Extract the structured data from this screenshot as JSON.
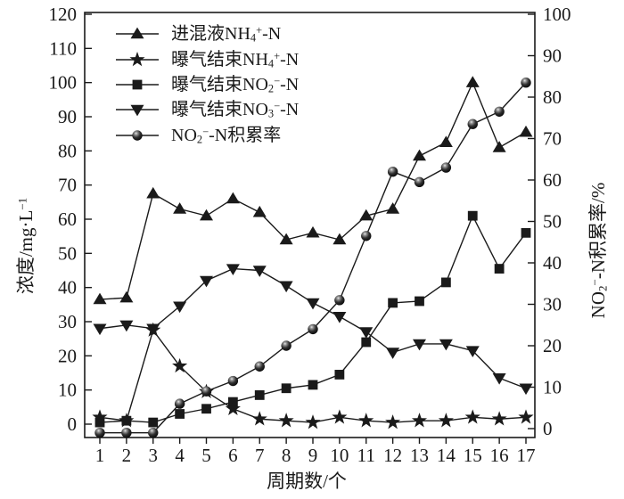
{
  "chart_data": {
    "type": "line",
    "title": "",
    "grid": false,
    "legend_position": "top-left-inside",
    "colors": {
      "foreground": "#1a1a1a",
      "background": "#ffffff"
    },
    "x_axis": {
      "label": "周期数/个",
      "range": [
        1,
        17
      ],
      "ticks": [
        1,
        2,
        3,
        4,
        5,
        6,
        7,
        8,
        9,
        10,
        11,
        12,
        13,
        14,
        15,
        16,
        17
      ]
    },
    "left_axis": {
      "label_plain": "浓度/mg·L−1",
      "label_segments": [
        [
          "text",
          "浓度/mg·L"
        ],
        [
          "sup",
          "−1"
        ]
      ],
      "range": [
        0,
        120
      ],
      "ticks": [
        0,
        10,
        20,
        30,
        40,
        50,
        60,
        70,
        80,
        90,
        100,
        110,
        120
      ]
    },
    "right_axis": {
      "label_plain": "NO2−-N积累率/%",
      "label_segments": [
        [
          "text",
          "NO"
        ],
        [
          "sub",
          "2"
        ],
        [
          "sup",
          "−"
        ],
        [
          "text",
          "-N积累率/%"
        ]
      ],
      "range": [
        0,
        100
      ],
      "ticks": [
        0,
        10,
        20,
        30,
        40,
        50,
        60,
        70,
        80,
        90,
        100
      ]
    },
    "x": [
      1,
      2,
      3,
      4,
      5,
      6,
      7,
      8,
      9,
      10,
      11,
      12,
      13,
      14,
      15,
      16,
      17
    ],
    "series": [
      {
        "name": "influent-nh4-n",
        "label_plain": "进混液NH4+-N",
        "label_segments": [
          [
            "text",
            "进混液NH"
          ],
          [
            "sub",
            "4"
          ],
          [
            "sup",
            "+"
          ],
          [
            "text",
            "-N"
          ]
        ],
        "marker": "triangle-up",
        "axis": "left",
        "z": 1,
        "values": [
          36.5,
          37,
          67.5,
          63,
          61,
          66,
          62,
          54,
          56,
          54,
          61,
          63,
          78.5,
          82.5,
          100,
          81,
          85.5
        ]
      },
      {
        "name": "aeration-end-nh4-n",
        "label_plain": "曝气结束NH4+-N",
        "label_segments": [
          [
            "text",
            "曝气结束NH"
          ],
          [
            "sub",
            "4"
          ],
          [
            "sup",
            "+"
          ],
          [
            "text",
            "-N"
          ]
        ],
        "marker": "star",
        "axis": "left",
        "z": 4,
        "values": [
          2,
          1,
          27.5,
          17,
          9.5,
          4.5,
          1.5,
          1,
          0.5,
          2,
          1,
          0.5,
          1,
          1,
          2,
          1.5,
          2
        ]
      },
      {
        "name": "aeration-end-no2-n",
        "label_plain": "曝气结束NO2−-N",
        "label_segments": [
          [
            "text",
            "曝气结束NO"
          ],
          [
            "sub",
            "2"
          ],
          [
            "sup",
            "−"
          ],
          [
            "text",
            "-N"
          ]
        ],
        "marker": "square",
        "axis": "left",
        "z": 2,
        "values": [
          0.5,
          1,
          0.5,
          3,
          4.5,
          6.5,
          8.5,
          10.5,
          11.5,
          14.5,
          24,
          35.5,
          36,
          41.5,
          61,
          45.5,
          56
        ]
      },
      {
        "name": "aeration-end-no3-n",
        "label_plain": "曝气结束NO3−-N",
        "label_segments": [
          [
            "text",
            "曝气结束NO"
          ],
          [
            "sub",
            "3"
          ],
          [
            "sup",
            "−"
          ],
          [
            "text",
            "-N"
          ]
        ],
        "marker": "triangle-down",
        "axis": "left",
        "z": 3,
        "values": [
          28,
          29,
          28,
          34.5,
          42,
          45.5,
          45,
          40.5,
          35.5,
          31.5,
          27,
          21,
          23.5,
          23.5,
          21.5,
          13.5,
          10.5
        ]
      },
      {
        "name": "no2-n-accumulation-rate",
        "label_plain": "NO2−-N积累率",
        "label_segments": [
          [
            "text",
            "NO"
          ],
          [
            "sub",
            "2"
          ],
          [
            "sup",
            "−"
          ],
          [
            "text",
            "-N积累率"
          ]
        ],
        "marker": "sphere",
        "axis": "right",
        "z": 5,
        "values": [
          -1,
          -1,
          -1,
          6,
          9,
          11.5,
          15,
          20,
          24,
          31,
          46.5,
          62,
          59.5,
          63,
          73.5,
          76.5,
          83.5
        ]
      }
    ]
  }
}
